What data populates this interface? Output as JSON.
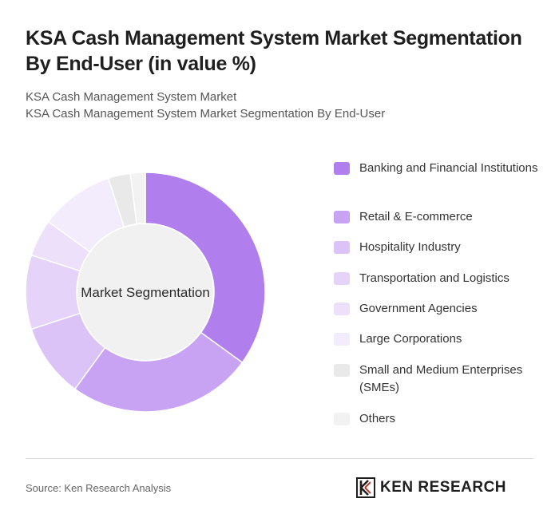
{
  "header": {
    "title": "KSA Cash Management System Market Segmentation By End-User (in value %)",
    "subtitle_1": "KSA Cash Management System Market",
    "subtitle_2": "KSA Cash Management System Market Segmentation By End-User"
  },
  "chart_data": {
    "type": "pie",
    "variant": "donut",
    "center_label": "Market Segmentation",
    "legend_position": "right",
    "categories": [
      "Banking and Financial Institutions",
      "Retail & E-commerce",
      "Hospitality Industry",
      "Transportation and Logistics",
      "Government Agencies",
      "Large Corporations",
      "Small and Medium Enterprises (SMEs)",
      "Others"
    ],
    "values": [
      35,
      25,
      10,
      10,
      5,
      10,
      3,
      2
    ],
    "colors": [
      "#b07fed",
      "#c8a3f3",
      "#dbc2f7",
      "#e5d3f9",
      "#ece0fa",
      "#f3ecfc",
      "#e9e9e9",
      "#f2f2f2"
    ]
  },
  "footer": {
    "source": "Source: Ken Research Analysis",
    "brand": "KEN RESEARCH"
  }
}
